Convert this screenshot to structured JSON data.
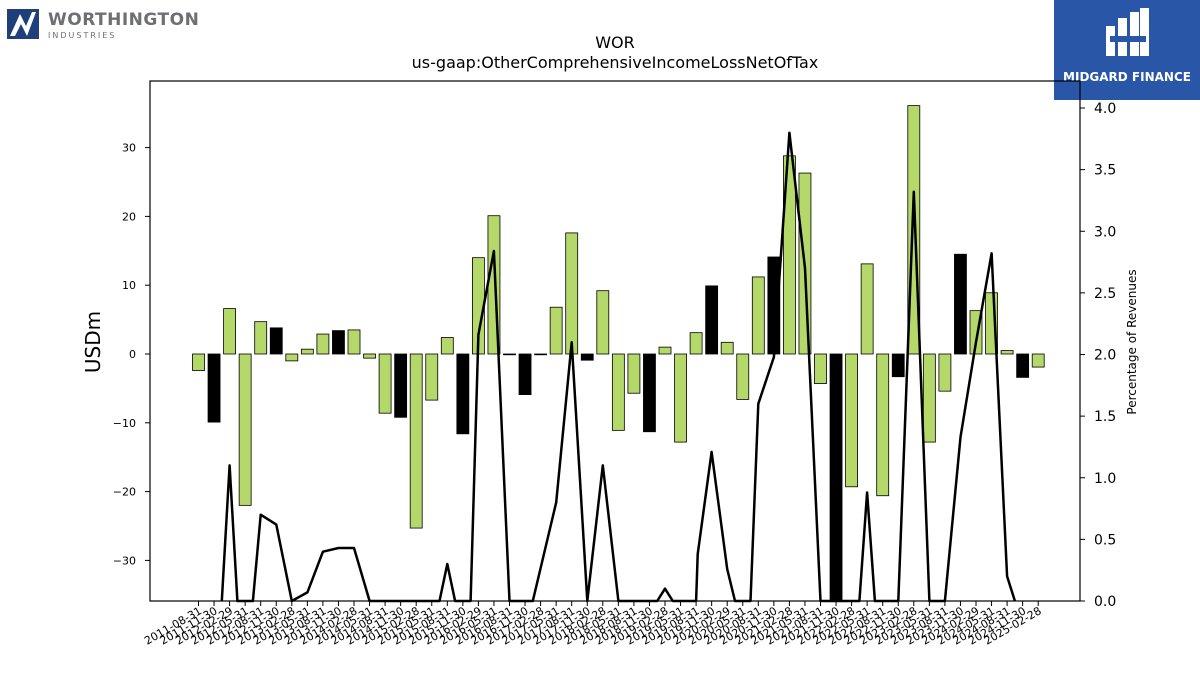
{
  "logos": {
    "left": {
      "wordmark": "WORTHINGTON",
      "subtitle": "INDUSTRIES",
      "color": "#1f3f7a"
    },
    "right": {
      "name": "MIDGARD FINANCE",
      "background": "#2a56a8"
    }
  },
  "chart_data": {
    "type": "bar",
    "title": "WOR",
    "subtitle": "us-gaap:OtherComprehensiveIncomeLossNetOfTax",
    "ylabel": "USDm",
    "y2label": "Percentage of Revenues",
    "ylim": [
      -36,
      40
    ],
    "y2lim": [
      0,
      4.2
    ],
    "yticks": [
      -30,
      -20,
      -10,
      0,
      10,
      20,
      30
    ],
    "y2ticks": [
      0.0,
      0.5,
      1.0,
      1.5,
      2.0,
      2.5,
      3.0,
      3.5,
      4.0
    ],
    "colors": {
      "positive_bar": "#b5d86a",
      "negative_bar": "#000000",
      "line": "#000000"
    },
    "categories": [
      "2011-08-31",
      "2011-11-30",
      "2012-02-29",
      "2012-05-31",
      "2012-08-31",
      "2012-11-30",
      "2013-02-28",
      "2013-05-31",
      "2013-08-31",
      "2013-11-30",
      "2014-02-28",
      "2014-05-31",
      "2014-08-31",
      "2014-11-30",
      "2015-02-28",
      "2015-05-31",
      "2015-08-31",
      "2015-11-30",
      "2016-02-29",
      "2016-05-31",
      "2016-08-31",
      "2016-11-30",
      "2017-02-28",
      "2017-05-31",
      "2017-08-31",
      "2017-11-30",
      "2018-02-28",
      "2018-05-31",
      "2018-08-31",
      "2018-11-30",
      "2019-02-28",
      "2019-05-31",
      "2019-08-31",
      "2019-11-30",
      "2020-02-29",
      "2020-05-31",
      "2020-08-31",
      "2020-11-30",
      "2021-02-28",
      "2021-05-31",
      "2021-08-31",
      "2021-11-30",
      "2022-02-28",
      "2022-05-31",
      "2022-08-31",
      "2022-11-30",
      "2023-02-28",
      "2023-05-31",
      "2023-08-31",
      "2023-11-30",
      "2024-02-29",
      "2024-05-31",
      "2024-08-31",
      "2024-11-30",
      "2025-02-28"
    ],
    "series": [
      {
        "values": [
          -2.4,
          -9.9,
          6.6,
          -22,
          4.7,
          3.8,
          -1,
          0.7,
          2.9,
          3.4,
          3.5,
          -0.6,
          -8.6,
          -9.2,
          -25.3,
          -6.7,
          2.4,
          -11.6,
          14,
          20.1,
          0,
          -5.9,
          0,
          6.8,
          17.6,
          -0.9,
          9.2,
          -11.1,
          -5.7,
          -11.3,
          1,
          -12.8,
          3.1,
          9.9,
          1.7,
          -6.6,
          11.2,
          14.1,
          28.8,
          26.3,
          -4.3,
          -35.7,
          -19.3,
          13.1,
          -20.6,
          -3.3,
          36.1,
          -12.8,
          -5.4,
          14.5,
          6.3,
          8.9,
          0.5,
          -3.4,
          -1.9
        ],
        "flagged": [
          false,
          true,
          false,
          false,
          false,
          true,
          false,
          false,
          false,
          true,
          false,
          false,
          false,
          true,
          false,
          false,
          false,
          true,
          false,
          false,
          true,
          true,
          false,
          false,
          false,
          true,
          false,
          false,
          false,
          true,
          false,
          false,
          false,
          true,
          false,
          false,
          false,
          true,
          false,
          false,
          false,
          true,
          false,
          false,
          false,
          true,
          false,
          false,
          false,
          true,
          false,
          false,
          false,
          true,
          false
        ]
      }
    ],
    "pct_revenue": [
      0,
      0,
      1.1,
      0,
      0.7,
      0.62,
      0,
      0.07,
      0.4,
      0.43,
      0.43,
      0,
      0,
      0,
      0,
      0,
      0.3,
      0,
      2.16,
      2.84,
      0,
      0,
      0,
      0.8,
      2.1,
      0,
      1.1,
      0,
      0,
      0,
      0.1,
      0,
      0.38,
      1.21,
      0.26,
      0,
      1.6,
      1.98,
      3.8,
      2.7,
      0,
      0,
      0,
      0.88,
      0,
      0,
      3.32,
      0,
      0,
      1.33,
      2.1,
      2.82,
      0.2,
      0,
      0
    ],
    "line_nodes": [
      [
        1.5,
        0
      ],
      [
        2,
        1.1
      ],
      [
        2.5,
        0
      ],
      [
        3.5,
        0
      ],
      [
        4,
        0.7
      ],
      [
        5,
        0.62
      ],
      [
        6,
        0
      ],
      [
        7,
        0.07
      ],
      [
        8,
        0.4
      ],
      [
        9,
        0.43
      ],
      [
        10,
        0.43
      ],
      [
        11,
        0
      ],
      [
        15.5,
        0
      ],
      [
        16,
        0.3
      ],
      [
        16.5,
        0
      ],
      [
        17.5,
        0
      ],
      [
        18,
        2.16
      ],
      [
        19,
        2.84
      ],
      [
        20,
        0
      ],
      [
        21.5,
        0
      ],
      [
        23,
        0.8
      ],
      [
        24,
        2.1
      ],
      [
        25,
        0
      ],
      [
        26,
        1.1
      ],
      [
        27,
        0
      ],
      [
        29.5,
        0
      ],
      [
        30,
        0.1
      ],
      [
        30.5,
        0
      ],
      [
        32,
        0
      ],
      [
        32.1,
        0.38
      ],
      [
        33,
        1.21
      ],
      [
        34,
        0.26
      ],
      [
        34.5,
        0
      ],
      [
        35.5,
        0
      ],
      [
        36,
        1.6
      ],
      [
        37,
        1.98
      ],
      [
        38,
        3.8
      ],
      [
        39,
        2.7
      ],
      [
        40,
        0
      ],
      [
        42.5,
        0
      ],
      [
        43,
        0.88
      ],
      [
        43.5,
        0
      ],
      [
        45,
        0
      ],
      [
        46,
        3.32
      ],
      [
        47,
        0
      ],
      [
        48,
        0
      ],
      [
        49,
        1.33
      ],
      [
        50,
        2.1
      ],
      [
        51,
        2.82
      ],
      [
        52,
        0.2
      ],
      [
        52.5,
        0
      ]
    ]
  }
}
